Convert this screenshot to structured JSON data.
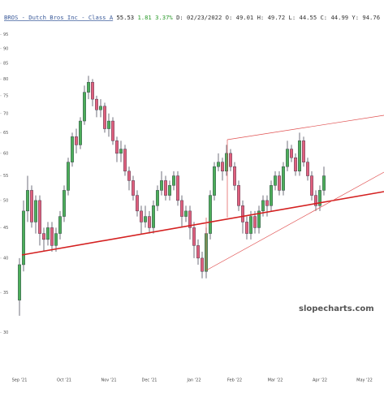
{
  "chart_data": {
    "type": "candlestick",
    "title": "BROS - Dutch Bros Inc - Class A",
    "price": "55.53",
    "change": "1.81",
    "change_pct": "3.37%",
    "details": "D: 02/23/2022 O: 49.01 H: 49.72 L: 44.55 C: 44.99 Y: 94.76",
    "watermark": "slopecharts.com",
    "up_color": "#4cae5a",
    "down_color": "#e0607e",
    "log_scale": true,
    "ylim": [
      26,
      102
    ],
    "yticks": [
      30,
      35,
      40,
      45,
      50,
      55,
      60,
      65,
      70,
      75,
      80,
      85,
      90,
      95
    ],
    "categories": [
      "Sep '21",
      null,
      null,
      null,
      null,
      null,
      null,
      null,
      null,
      null,
      null,
      "Oct '21",
      null,
      null,
      null,
      null,
      null,
      null,
      null,
      null,
      null,
      null,
      "Nov '21",
      null,
      null,
      null,
      null,
      null,
      null,
      null,
      null,
      null,
      "Dec '21",
      null,
      null,
      null,
      null,
      null,
      null,
      null,
      null,
      null,
      null,
      "Jan '22",
      null,
      null,
      null,
      null,
      null,
      null,
      null,
      null,
      null,
      "Feb '22",
      null,
      null,
      null,
      null,
      null,
      null,
      null,
      null,
      null,
      "Mar '22",
      null,
      null,
      null,
      null,
      null,
      null,
      null,
      null,
      null,
      null,
      "Apr '22",
      null,
      null,
      null,
      null,
      null,
      null,
      null,
      null,
      null,
      null,
      "May '22"
    ],
    "open": [
      34,
      39,
      48,
      52,
      46,
      50,
      44,
      43,
      45,
      42,
      44,
      47,
      52,
      58,
      64,
      62,
      68,
      76,
      79,
      74,
      71,
      72,
      66,
      68,
      63,
      60,
      61,
      56,
      54,
      51,
      48,
      46,
      47,
      45,
      49,
      52,
      54,
      51,
      53,
      55,
      50,
      47,
      48,
      45,
      42,
      40,
      38,
      44,
      51,
      57,
      58,
      56,
      60,
      57,
      53,
      49,
      46,
      44,
      47,
      45,
      48,
      50,
      49,
      53,
      55,
      52,
      57,
      61,
      59,
      56,
      63,
      58,
      55,
      51,
      49,
      52,
      null,
      null,
      null,
      null,
      null,
      null,
      null,
      null,
      null,
      null
    ],
    "high": [
      40,
      50,
      55,
      53,
      51,
      51,
      45,
      46,
      46,
      45,
      48,
      53,
      59,
      65,
      66,
      69,
      78,
      81,
      80,
      75,
      74,
      73,
      70,
      69,
      64,
      63,
      62,
      57,
      55,
      52,
      49,
      49,
      48,
      50,
      53,
      56,
      55,
      54,
      56,
      56,
      51,
      49,
      49,
      46,
      43,
      41,
      45,
      52,
      58,
      60,
      59,
      62,
      61,
      58,
      54,
      50,
      47,
      48,
      48,
      49,
      51,
      51,
      54,
      56,
      56,
      58,
      63,
      62,
      60,
      65,
      64,
      59,
      56,
      52,
      53,
      57,
      null,
      null,
      null,
      null,
      null,
      null,
      null,
      null,
      null,
      null
    ],
    "low": [
      32,
      38,
      46,
      45,
      44,
      42,
      41,
      42,
      41,
      41,
      43,
      46,
      51,
      57,
      60,
      61,
      67,
      74,
      72,
      69,
      69,
      65,
      64,
      62,
      58,
      58,
      55,
      52,
      50,
      47,
      44,
      45,
      44,
      44,
      48,
      51,
      50,
      50,
      52,
      49,
      45,
      46,
      43,
      40,
      39,
      37,
      37,
      43,
      50,
      56,
      54,
      55,
      56,
      52,
      48,
      44,
      43,
      43,
      44,
      44,
      47,
      47,
      48,
      52,
      51,
      51,
      56,
      58,
      55,
      55,
      57,
      54,
      50,
      48,
      48,
      51,
      null,
      null,
      null,
      null,
      null,
      null,
      null,
      null,
      null,
      null
    ],
    "close": [
      39,
      48,
      52,
      46,
      50,
      44,
      43,
      45,
      42,
      44,
      47,
      52,
      58,
      64,
      62,
      68,
      76,
      79,
      74,
      71,
      72,
      66,
      68,
      63,
      60,
      61,
      56,
      54,
      51,
      48,
      46,
      47,
      45,
      49,
      52,
      54,
      51,
      53,
      55,
      50,
      47,
      48,
      45,
      42,
      40,
      38,
      44,
      51,
      57,
      58,
      56,
      60,
      57,
      53,
      49,
      46,
      44,
      47,
      45,
      48,
      50,
      49,
      53,
      55,
      52,
      57,
      61,
      59,
      56,
      63,
      58,
      55,
      51,
      49,
      52,
      55,
      null,
      null,
      null,
      null,
      null,
      null,
      null,
      null,
      null,
      null
    ]
  }
}
